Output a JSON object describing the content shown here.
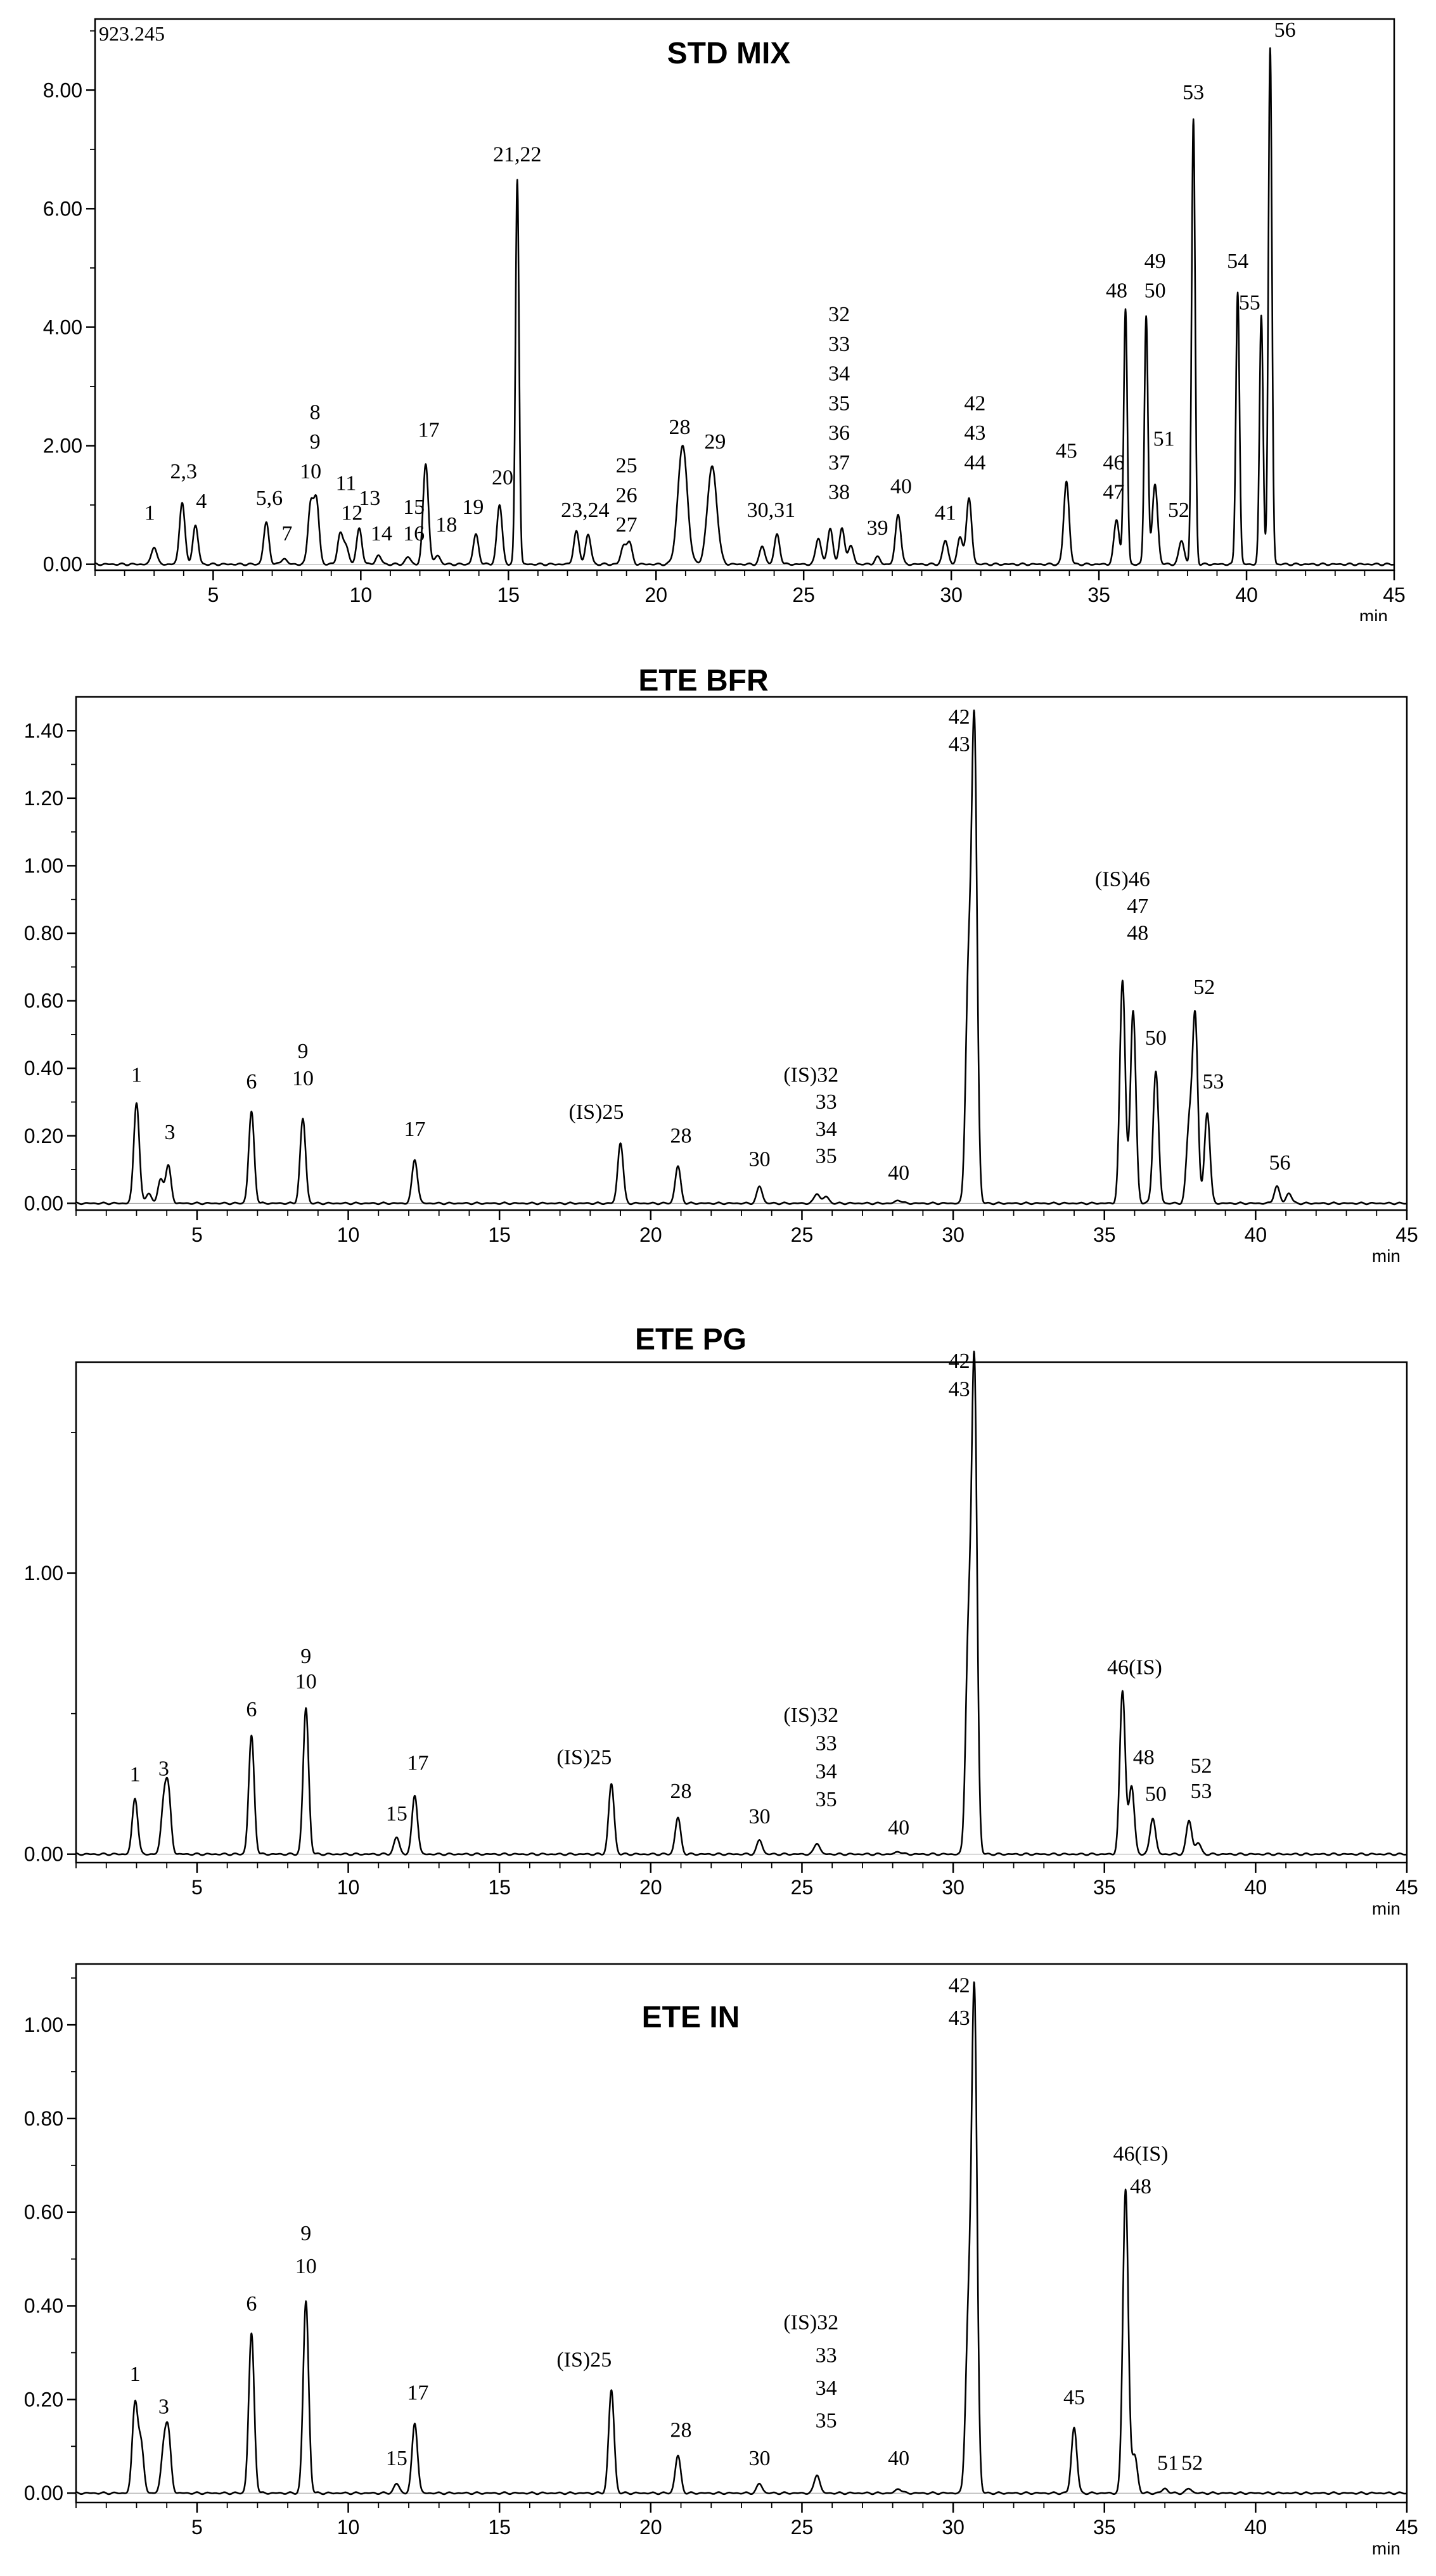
{
  "chart_data": [
    {
      "type": "line",
      "title": "STD MIX",
      "corner_label": "923.245",
      "xlabel": "min",
      "xlim": [
        1,
        45
      ],
      "ylim": [
        -0.1,
        9.2
      ],
      "x_ticks": [
        5,
        10,
        15,
        20,
        25,
        30,
        35,
        40,
        45
      ],
      "y_ticks": [
        0.0,
        2.0,
        4.0,
        6.0,
        8.0
      ],
      "y_tick_labels": [
        "0.00",
        "2.00",
        "4.00",
        "6.00",
        "8.00"
      ],
      "peaks": [
        {
          "x": 3.0,
          "h": 0.3
        },
        {
          "x": 3.95,
          "h": 1.05
        },
        {
          "x": 4.4,
          "h": 0.65
        },
        {
          "x": 6.8,
          "h": 0.7
        },
        {
          "x": 7.4,
          "h": 0.1
        },
        {
          "x": 8.3,
          "h": 1.0
        },
        {
          "x": 8.5,
          "h": 1.05
        },
        {
          "x": 9.3,
          "h": 0.5
        },
        {
          "x": 9.5,
          "h": 0.3
        },
        {
          "x": 9.95,
          "h": 0.6
        },
        {
          "x": 10.6,
          "h": 0.15
        },
        {
          "x": 11.6,
          "h": 0.12
        },
        {
          "x": 12.2,
          "h": 1.7
        },
        {
          "x": 12.6,
          "h": 0.15
        },
        {
          "x": 13.9,
          "h": 0.5
        },
        {
          "x": 14.7,
          "h": 1.0
        },
        {
          "x": 15.3,
          "h": 6.5
        },
        {
          "x": 17.3,
          "h": 0.55
        },
        {
          "x": 17.7,
          "h": 0.5
        },
        {
          "x": 18.9,
          "h": 0.3
        },
        {
          "x": 19.1,
          "h": 0.35
        },
        {
          "x": 20.9,
          "h": 2.0
        },
        {
          "x": 21.9,
          "h": 1.65
        },
        {
          "x": 23.6,
          "h": 0.3
        },
        {
          "x": 24.1,
          "h": 0.5
        },
        {
          "x": 25.5,
          "h": 0.45
        },
        {
          "x": 25.9,
          "h": 0.6
        },
        {
          "x": 26.3,
          "h": 0.6
        },
        {
          "x": 26.6,
          "h": 0.3
        },
        {
          "x": 27.5,
          "h": 0.12
        },
        {
          "x": 28.2,
          "h": 0.85
        },
        {
          "x": 29.8,
          "h": 0.4
        },
        {
          "x": 30.3,
          "h": 0.45
        },
        {
          "x": 30.6,
          "h": 1.1
        },
        {
          "x": 33.9,
          "h": 1.4
        },
        {
          "x": 35.6,
          "h": 0.75
        },
        {
          "x": 35.9,
          "h": 4.3
        },
        {
          "x": 36.6,
          "h": 4.2
        },
        {
          "x": 36.9,
          "h": 1.35
        },
        {
          "x": 37.8,
          "h": 0.4
        },
        {
          "x": 38.2,
          "h": 7.5
        },
        {
          "x": 39.7,
          "h": 4.6
        },
        {
          "x": 40.5,
          "h": 4.2
        },
        {
          "x": 40.8,
          "h": 8.7
        }
      ],
      "labels": [
        {
          "text": "1",
          "x": 2.85,
          "y": 0.75
        },
        {
          "text": "2,3",
          "x": 4.0,
          "y": 1.45
        },
        {
          "text": "4",
          "x": 4.6,
          "y": 0.95
        },
        {
          "text": "5,6",
          "x": 6.9,
          "y": 1.0
        },
        {
          "text": "7",
          "x": 7.5,
          "y": 0.4
        },
        {
          "text": "8",
          "x": 8.45,
          "y": 2.45
        },
        {
          "text": "9",
          "x": 8.45,
          "y": 1.95
        },
        {
          "text": "10",
          "x": 8.3,
          "y": 1.45
        },
        {
          "text": "11",
          "x": 9.5,
          "y": 1.25
        },
        {
          "text": "12",
          "x": 9.7,
          "y": 0.75
        },
        {
          "text": "13",
          "x": 10.3,
          "y": 1.0
        },
        {
          "text": "14",
          "x": 10.7,
          "y": 0.4
        },
        {
          "text": "15",
          "x": 11.8,
          "y": 0.85
        },
        {
          "text": "16",
          "x": 11.8,
          "y": 0.4
        },
        {
          "text": "17",
          "x": 12.3,
          "y": 2.15
        },
        {
          "text": "18",
          "x": 12.9,
          "y": 0.55
        },
        {
          "text": "19",
          "x": 13.8,
          "y": 0.85
        },
        {
          "text": "20",
          "x": 14.8,
          "y": 1.35
        },
        {
          "text": "21,22",
          "x": 15.3,
          "y": 6.8
        },
        {
          "text": "23,24",
          "x": 17.6,
          "y": 0.8
        },
        {
          "text": "25",
          "x": 19.0,
          "y": 1.55
        },
        {
          "text": "26",
          "x": 19.0,
          "y": 1.05
        },
        {
          "text": "27",
          "x": 19.0,
          "y": 0.55
        },
        {
          "text": "28",
          "x": 20.8,
          "y": 2.2
        },
        {
          "text": "29",
          "x": 22.0,
          "y": 1.95
        },
        {
          "text": "30,31",
          "x": 23.9,
          "y": 0.8
        },
        {
          "text": "32",
          "x": 26.2,
          "y": 4.1
        },
        {
          "text": "33",
          "x": 26.2,
          "y": 3.6
        },
        {
          "text": "34",
          "x": 26.2,
          "y": 3.1
        },
        {
          "text": "35",
          "x": 26.2,
          "y": 2.6
        },
        {
          "text": "36",
          "x": 26.2,
          "y": 2.1
        },
        {
          "text": "37",
          "x": 26.2,
          "y": 1.6
        },
        {
          "text": "38",
          "x": 26.2,
          "y": 1.1
        },
        {
          "text": "39",
          "x": 27.5,
          "y": 0.5
        },
        {
          "text": "40",
          "x": 28.3,
          "y": 1.2
        },
        {
          "text": "41",
          "x": 29.8,
          "y": 0.75
        },
        {
          "text": "42",
          "x": 30.8,
          "y": 2.6
        },
        {
          "text": "43",
          "x": 30.8,
          "y": 2.1
        },
        {
          "text": "44",
          "x": 30.8,
          "y": 1.6
        },
        {
          "text": "45",
          "x": 33.9,
          "y": 1.8
        },
        {
          "text": "46",
          "x": 35.5,
          "y": 1.6
        },
        {
          "text": "47",
          "x": 35.5,
          "y": 1.1
        },
        {
          "text": "48",
          "x": 35.6,
          "y": 4.5
        },
        {
          "text": "49",
          "x": 36.9,
          "y": 5.0
        },
        {
          "text": "50",
          "x": 36.9,
          "y": 4.5
        },
        {
          "text": "51",
          "x": 37.2,
          "y": 2.0
        },
        {
          "text": "52",
          "x": 37.7,
          "y": 0.8
        },
        {
          "text": "53",
          "x": 38.2,
          "y": 7.85
        },
        {
          "text": "54",
          "x": 39.7,
          "y": 5.0
        },
        {
          "text": "55",
          "x": 40.1,
          "y": 4.3
        },
        {
          "text": "56",
          "x": 41.3,
          "y": 8.9
        }
      ]
    },
    {
      "type": "line",
      "title": "ETE BFR",
      "xlabel": "min",
      "xlim": [
        1,
        45
      ],
      "ylim": [
        -0.02,
        1.5
      ],
      "x_ticks": [
        5,
        10,
        15,
        20,
        25,
        30,
        35,
        40,
        45
      ],
      "y_ticks": [
        0.0,
        0.2,
        0.4,
        0.6,
        0.8,
        1.0,
        1.2,
        1.4
      ],
      "y_tick_labels": [
        "0.00",
        "0.20",
        "0.40",
        "0.60",
        "0.80",
        "1.00",
        "1.20",
        "1.40"
      ],
      "peaks": [
        {
          "x": 3.0,
          "h": 0.3
        },
        {
          "x": 3.4,
          "h": 0.03
        },
        {
          "x": 3.8,
          "h": 0.07
        },
        {
          "x": 4.05,
          "h": 0.11
        },
        {
          "x": 6.8,
          "h": 0.27
        },
        {
          "x": 8.5,
          "h": 0.25
        },
        {
          "x": 12.2,
          "h": 0.13
        },
        {
          "x": 19.0,
          "h": 0.18
        },
        {
          "x": 20.9,
          "h": 0.11
        },
        {
          "x": 23.6,
          "h": 0.05
        },
        {
          "x": 25.5,
          "h": 0.03
        },
        {
          "x": 25.8,
          "h": 0.02
        },
        {
          "x": 28.2,
          "h": 0.01
        },
        {
          "x": 30.5,
          "h": 0.64
        },
        {
          "x": 30.7,
          "h": 1.4
        },
        {
          "x": 35.6,
          "h": 0.66
        },
        {
          "x": 35.95,
          "h": 0.57
        },
        {
          "x": 36.7,
          "h": 0.39
        },
        {
          "x": 37.8,
          "h": 0.22
        },
        {
          "x": 38.0,
          "h": 0.55
        },
        {
          "x": 38.4,
          "h": 0.27
        },
        {
          "x": 40.7,
          "h": 0.05
        },
        {
          "x": 41.1,
          "h": 0.03
        }
      ],
      "labels": [
        {
          "text": "1",
          "x": 3.0,
          "y": 0.36
        },
        {
          "text": "3",
          "x": 4.1,
          "y": 0.19
        },
        {
          "text": "6",
          "x": 6.8,
          "y": 0.34
        },
        {
          "text": "9",
          "x": 8.5,
          "y": 0.43
        },
        {
          "text": "10",
          "x": 8.5,
          "y": 0.35
        },
        {
          "text": "17",
          "x": 12.2,
          "y": 0.2
        },
        {
          "text": "(IS)25",
          "x": 18.2,
          "y": 0.25
        },
        {
          "text": "28",
          "x": 21.0,
          "y": 0.18
        },
        {
          "text": "30",
          "x": 23.6,
          "y": 0.11
        },
        {
          "text": "(IS)32",
          "x": 25.3,
          "y": 0.36
        },
        {
          "text": "33",
          "x": 25.8,
          "y": 0.28
        },
        {
          "text": "34",
          "x": 25.8,
          "y": 0.2
        },
        {
          "text": "35",
          "x": 25.8,
          "y": 0.12
        },
        {
          "text": "40",
          "x": 28.2,
          "y": 0.07
        },
        {
          "text": "42",
          "x": 30.2,
          "y": 1.42
        },
        {
          "text": "43",
          "x": 30.2,
          "y": 1.34
        },
        {
          "text": "(IS)46",
          "x": 35.6,
          "y": 0.94
        },
        {
          "text": "47",
          "x": 36.1,
          "y": 0.86
        },
        {
          "text": "48",
          "x": 36.1,
          "y": 0.78
        },
        {
          "text": "50",
          "x": 36.7,
          "y": 0.47
        },
        {
          "text": "52",
          "x": 38.3,
          "y": 0.62
        },
        {
          "text": "53",
          "x": 38.6,
          "y": 0.34
        },
        {
          "text": "56",
          "x": 40.8,
          "y": 0.1
        }
      ]
    },
    {
      "type": "line",
      "title": "ETE PG",
      "xlabel": "min",
      "xlim": [
        1,
        45
      ],
      "ylim": [
        -0.03,
        1.75
      ],
      "x_ticks": [
        5,
        10,
        15,
        20,
        25,
        30,
        35,
        40,
        45
      ],
      "y_ticks": [
        0.0,
        1.0
      ],
      "y_tick_labels": [
        "0.00",
        "1.00"
      ],
      "peaks": [
        {
          "x": 2.95,
          "h": 0.2
        },
        {
          "x": 3.9,
          "h": 0.17
        },
        {
          "x": 4.05,
          "h": 0.21
        },
        {
          "x": 6.8,
          "h": 0.42
        },
        {
          "x": 8.6,
          "h": 0.52
        },
        {
          "x": 11.6,
          "h": 0.06
        },
        {
          "x": 12.2,
          "h": 0.21
        },
        {
          "x": 18.7,
          "h": 0.25
        },
        {
          "x": 20.9,
          "h": 0.13
        },
        {
          "x": 23.6,
          "h": 0.05
        },
        {
          "x": 25.5,
          "h": 0.04
        },
        {
          "x": 28.2,
          "h": 0.01
        },
        {
          "x": 30.5,
          "h": 0.73
        },
        {
          "x": 30.7,
          "h": 1.72
        },
        {
          "x": 35.6,
          "h": 0.58
        },
        {
          "x": 35.9,
          "h": 0.24
        },
        {
          "x": 36.6,
          "h": 0.13
        },
        {
          "x": 37.8,
          "h": 0.12
        },
        {
          "x": 38.1,
          "h": 0.04
        }
      ],
      "labels": [
        {
          "text": "1",
          "x": 2.95,
          "y": 0.26
        },
        {
          "text": "3",
          "x": 3.9,
          "y": 0.28
        },
        {
          "text": "6",
          "x": 6.8,
          "y": 0.49
        },
        {
          "text": "9",
          "x": 8.6,
          "y": 0.68
        },
        {
          "text": "10",
          "x": 8.6,
          "y": 0.59
        },
        {
          "text": "15",
          "x": 11.6,
          "y": 0.12
        },
        {
          "text": "17",
          "x": 12.3,
          "y": 0.3
        },
        {
          "text": "(IS)25",
          "x": 17.8,
          "y": 0.32
        },
        {
          "text": "28",
          "x": 21.0,
          "y": 0.2
        },
        {
          "text": "30",
          "x": 23.6,
          "y": 0.11
        },
        {
          "text": "(IS)32",
          "x": 25.3,
          "y": 0.47
        },
        {
          "text": "33",
          "x": 25.8,
          "y": 0.37
        },
        {
          "text": "34",
          "x": 25.8,
          "y": 0.27
        },
        {
          "text": "35",
          "x": 25.8,
          "y": 0.17
        },
        {
          "text": "40",
          "x": 28.2,
          "y": 0.07
        },
        {
          "text": "42",
          "x": 30.2,
          "y": 1.73
        },
        {
          "text": "43",
          "x": 30.2,
          "y": 1.63
        },
        {
          "text": "46(IS)",
          "x": 36.0,
          "y": 0.64
        },
        {
          "text": "48",
          "x": 36.3,
          "y": 0.32
        },
        {
          "text": "50",
          "x": 36.7,
          "y": 0.19
        },
        {
          "text": "52",
          "x": 38.2,
          "y": 0.29
        },
        {
          "text": "53",
          "x": 38.2,
          "y": 0.2
        }
      ]
    },
    {
      "type": "line",
      "title": "ETE IN",
      "xlabel": "min",
      "xlim": [
        1,
        45
      ],
      "ylim": [
        -0.02,
        1.13
      ],
      "x_ticks": [
        5,
        10,
        15,
        20,
        25,
        30,
        35,
        40,
        45
      ],
      "y_ticks": [
        0.0,
        0.2,
        0.4,
        0.6,
        0.8,
        1.0
      ],
      "y_tick_labels": [
        "0.00",
        "0.20",
        "0.40",
        "0.60",
        "0.80",
        "1.00"
      ],
      "peaks": [
        {
          "x": 2.95,
          "h": 0.19
        },
        {
          "x": 3.15,
          "h": 0.1
        },
        {
          "x": 3.9,
          "h": 0.09
        },
        {
          "x": 4.05,
          "h": 0.12
        },
        {
          "x": 6.8,
          "h": 0.34
        },
        {
          "x": 8.6,
          "h": 0.41
        },
        {
          "x": 11.6,
          "h": 0.02
        },
        {
          "x": 12.2,
          "h": 0.15
        },
        {
          "x": 18.7,
          "h": 0.22
        },
        {
          "x": 20.9,
          "h": 0.08
        },
        {
          "x": 23.6,
          "h": 0.02
        },
        {
          "x": 25.5,
          "h": 0.04
        },
        {
          "x": 28.2,
          "h": 0.01
        },
        {
          "x": 30.5,
          "h": 0.35
        },
        {
          "x": 30.7,
          "h": 1.06
        },
        {
          "x": 34.0,
          "h": 0.14
        },
        {
          "x": 35.7,
          "h": 0.65
        },
        {
          "x": 36.0,
          "h": 0.08
        },
        {
          "x": 37.0,
          "h": 0.01
        },
        {
          "x": 37.8,
          "h": 0.01
        }
      ],
      "labels": [
        {
          "text": "1",
          "x": 2.95,
          "y": 0.24
        },
        {
          "text": "3",
          "x": 3.9,
          "y": 0.17
        },
        {
          "text": "6",
          "x": 6.8,
          "y": 0.39
        },
        {
          "text": "9",
          "x": 8.6,
          "y": 0.54
        },
        {
          "text": "10",
          "x": 8.6,
          "y": 0.47
        },
        {
          "text": "15",
          "x": 11.6,
          "y": 0.06
        },
        {
          "text": "17",
          "x": 12.3,
          "y": 0.2
        },
        {
          "text": "(IS)25",
          "x": 17.8,
          "y": 0.27
        },
        {
          "text": "28",
          "x": 21.0,
          "y": 0.12
        },
        {
          "text": "30",
          "x": 23.6,
          "y": 0.06
        },
        {
          "text": "(IS)32",
          "x": 25.3,
          "y": 0.35
        },
        {
          "text": "33",
          "x": 25.8,
          "y": 0.28
        },
        {
          "text": "34",
          "x": 25.8,
          "y": 0.21
        },
        {
          "text": "35",
          "x": 25.8,
          "y": 0.14
        },
        {
          "text": "40",
          "x": 28.2,
          "y": 0.06
        },
        {
          "text": "42",
          "x": 30.2,
          "y": 1.07
        },
        {
          "text": "43",
          "x": 30.2,
          "y": 1.0
        },
        {
          "text": "45",
          "x": 34.0,
          "y": 0.19
        },
        {
          "text": "46(IS)",
          "x": 36.2,
          "y": 0.71
        },
        {
          "text": "48",
          "x": 36.2,
          "y": 0.64
        },
        {
          "text": "51",
          "x": 37.1,
          "y": 0.05
        },
        {
          "text": "52",
          "x": 37.9,
          "y": 0.05
        }
      ]
    }
  ]
}
